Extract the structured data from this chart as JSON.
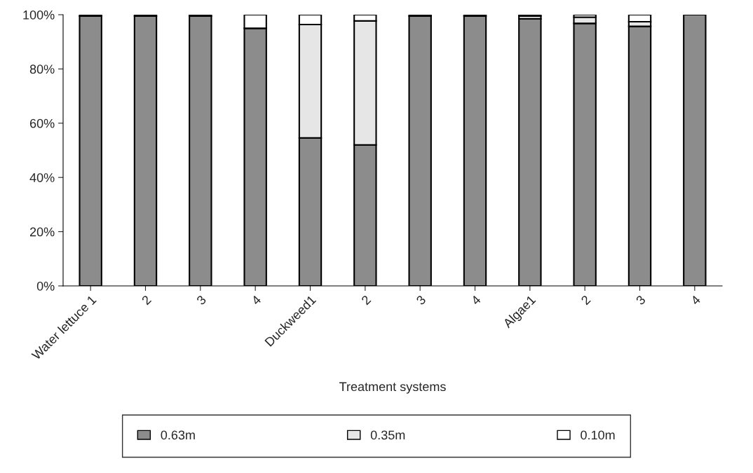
{
  "chart_data": {
    "type": "bar",
    "stacked": true,
    "xlabel": "Treatment systems",
    "categories": [
      "Water lettuce 1",
      "2",
      "3",
      "4",
      "Duckweed1",
      "2",
      "3",
      "4",
      "Algae1",
      "2",
      "3",
      "4"
    ],
    "series": [
      {
        "name": "0.63m",
        "color": "#8c8c8c",
        "values": [
          99.5,
          99.5,
          99.5,
          95,
          54.6,
          52,
          99.5,
          99.5,
          98.5,
          96.8,
          95.7,
          100
        ]
      },
      {
        "name": "0.35m",
        "color": "#e6e6e6",
        "values": [
          0,
          0,
          0,
          0,
          41.8,
          45.7,
          0,
          0,
          1,
          2.3,
          1.7,
          0
        ]
      },
      {
        "name": "0.10m",
        "color": "#ffffff",
        "values": [
          0.5,
          0.5,
          0.5,
          5,
          3.6,
          2.3,
          0.5,
          0.5,
          0.5,
          0.9,
          2.6,
          0
        ]
      }
    ],
    "ylim": [
      0,
      100
    ],
    "yticks": [
      {
        "value": 0,
        "label": "0%"
      },
      {
        "value": 20,
        "label": "20%"
      },
      {
        "value": 40,
        "label": "40%"
      },
      {
        "value": 60,
        "label": "60%"
      },
      {
        "value": 80,
        "label": "80%"
      },
      {
        "value": 100,
        "label": "100%"
      }
    ],
    "grid": false,
    "legend": "bottom"
  }
}
